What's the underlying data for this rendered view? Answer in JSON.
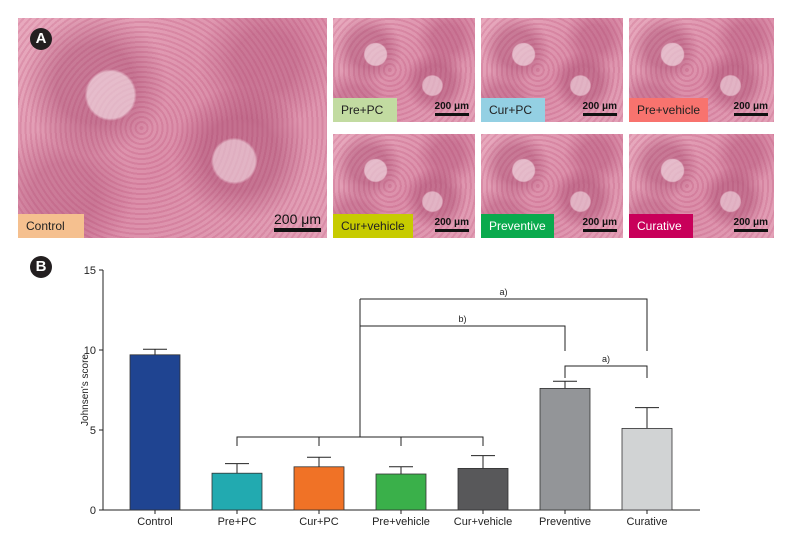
{
  "panel_a": {
    "badge": "A",
    "images": [
      {
        "label": "Control",
        "label_color": "#f5c08f",
        "scale": "200 μm"
      },
      {
        "label": "Pre+PC",
        "label_color": "#c2dba1",
        "scale": "200 μm"
      },
      {
        "label": "Cur+PC",
        "label_color": "#94d0e3",
        "scale": "200 μm"
      },
      {
        "label": "Pre+vehicle",
        "label_color": "#f8736e",
        "scale": "200 μm"
      },
      {
        "label": "Cur+vehicle",
        "label_color": "#c7cb00",
        "scale": "200 μm"
      },
      {
        "label": "Preventive",
        "label_color": "#0aaa4d",
        "scale": "200 μm"
      },
      {
        "label": "Curative",
        "label_color": "#c8005a",
        "scale": "200 μm"
      }
    ]
  },
  "panel_b": {
    "badge": "B"
  },
  "chart_data": {
    "type": "bar",
    "categories": [
      "Control",
      "Pre+PC",
      "Cur+PC",
      "Pre+vehicle",
      "Cur+vehicle",
      "Preventive",
      "Curative"
    ],
    "values": [
      9.7,
      2.3,
      2.7,
      2.25,
      2.6,
      7.6,
      5.1
    ],
    "errors": [
      0.35,
      0.6,
      0.6,
      0.45,
      0.8,
      0.45,
      1.3
    ],
    "colors": [
      "#1f4491",
      "#22aab0",
      "#f07226",
      "#3ab04a",
      "#58585a",
      "#939598",
      "#d1d3d4"
    ],
    "xlabel": "",
    "ylabel": "Johnsen's score",
    "ylim": [
      0,
      15
    ],
    "yticks": [
      0,
      5,
      10,
      15
    ],
    "grid": false,
    "annotations": [
      {
        "text": "a)",
        "from": "Cur+vehicle",
        "to": "Curative"
      },
      {
        "text": "b)",
        "from": "Cur+vehicle",
        "to": "Preventive"
      },
      {
        "text": "a)",
        "from": "Preventive",
        "to": "Curative"
      }
    ]
  }
}
